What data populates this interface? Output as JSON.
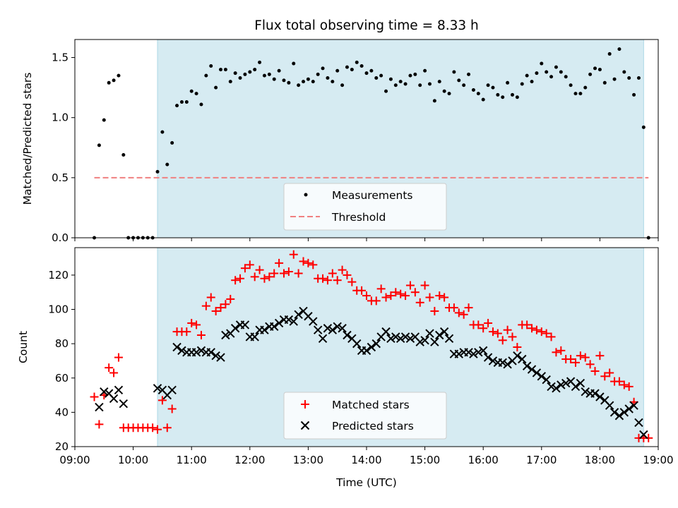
{
  "chart_data": [
    {
      "type": "scatter",
      "title": "Flux total observing time = 8.33 h",
      "xlabel": "",
      "ylabel": "Matched/Predicted stars",
      "xlim": [
        "09:00",
        "19:00"
      ],
      "ylim": [
        0,
        1.65
      ],
      "yticks": [
        0.0,
        0.5,
        1.0,
        1.5
      ],
      "ytick_labels": [
        "0.0",
        "0.5",
        "1.0",
        "1.5"
      ],
      "shaded_span": [
        "10:25",
        "18:45"
      ],
      "threshold": {
        "value": 0.5,
        "x_range": [
          "09:20",
          "18:50"
        ],
        "color": "#f08080"
      },
      "legend": {
        "placement": "lower-center",
        "entries": [
          "Measurements",
          "Threshold"
        ]
      },
      "series": [
        {
          "name": "Measurements",
          "marker": "dot",
          "color": "#000000",
          "x": [
            "09:20",
            "09:25",
            "09:30",
            "09:35",
            "09:40",
            "09:45",
            "09:50",
            "09:55",
            "10:00",
            "10:05",
            "10:10",
            "10:15",
            "10:20",
            "10:25",
            "10:30",
            "10:35",
            "10:40",
            "10:45",
            "10:50",
            "10:55",
            "11:00",
            "11:05",
            "11:10",
            "11:15",
            "11:20",
            "11:25",
            "11:30",
            "11:35",
            "11:40",
            "11:45",
            "11:50",
            "11:55",
            "12:00",
            "12:05",
            "12:10",
            "12:15",
            "12:20",
            "12:25",
            "12:30",
            "12:35",
            "12:40",
            "12:45",
            "12:50",
            "12:55",
            "13:00",
            "13:05",
            "13:10",
            "13:15",
            "13:20",
            "13:25",
            "13:30",
            "13:35",
            "13:40",
            "13:45",
            "13:50",
            "13:55",
            "14:00",
            "14:05",
            "14:10",
            "14:15",
            "14:20",
            "14:25",
            "14:30",
            "14:35",
            "14:40",
            "14:45",
            "14:50",
            "14:55",
            "15:00",
            "15:05",
            "15:10",
            "15:15",
            "15:20",
            "15:25",
            "15:30",
            "15:35",
            "15:40",
            "15:45",
            "15:50",
            "15:55",
            "16:00",
            "16:05",
            "16:10",
            "16:15",
            "16:20",
            "16:25",
            "16:30",
            "16:35",
            "16:40",
            "16:45",
            "16:50",
            "16:55",
            "17:00",
            "17:05",
            "17:10",
            "17:15",
            "17:20",
            "17:25",
            "17:30",
            "17:35",
            "17:40",
            "17:45",
            "17:50",
            "17:55",
            "18:00",
            "18:05",
            "18:10",
            "18:15",
            "18:20",
            "18:25",
            "18:30",
            "18:35",
            "18:40",
            "18:45",
            "18:50"
          ],
          "y": [
            0.0,
            0.77,
            0.98,
            1.29,
            1.31,
            1.35,
            0.69,
            0.0,
            0.0,
            0.0,
            0.0,
            0.0,
            0.0,
            0.55,
            0.88,
            0.61,
            0.79,
            1.1,
            1.13,
            1.13,
            1.22,
            1.2,
            1.11,
            1.35,
            1.43,
            1.25,
            1.4,
            1.4,
            1.3,
            1.37,
            1.33,
            1.36,
            1.38,
            1.4,
            1.46,
            1.35,
            1.36,
            1.32,
            1.39,
            1.31,
            1.29,
            1.45,
            1.27,
            1.3,
            1.32,
            1.3,
            1.36,
            1.41,
            1.33,
            1.3,
            1.39,
            1.27,
            1.42,
            1.4,
            1.46,
            1.43,
            1.37,
            1.39,
            1.33,
            1.35,
            1.22,
            1.32,
            1.27,
            1.3,
            1.28,
            1.35,
            1.36,
            1.27,
            1.39,
            1.28,
            1.14,
            1.3,
            1.22,
            1.2,
            1.38,
            1.31,
            1.27,
            1.36,
            1.23,
            1.2,
            1.15,
            1.27,
            1.25,
            1.19,
            1.17,
            1.29,
            1.19,
            1.17,
            1.28,
            1.35,
            1.3,
            1.37,
            1.45,
            1.38,
            1.34,
            1.42,
            1.38,
            1.34,
            1.27,
            1.2,
            1.2,
            1.25,
            1.36,
            1.41,
            1.4,
            1.29,
            1.53,
            1.32,
            1.57,
            1.38,
            1.33,
            1.19,
            1.33,
            0.92,
            0.0
          ]
        }
      ]
    },
    {
      "type": "scatter",
      "title": "",
      "xlabel": "Time (UTC)",
      "ylabel": "Count",
      "xlim": [
        "09:00",
        "19:00"
      ],
      "ylim": [
        20,
        136
      ],
      "yticks": [
        20,
        40,
        60,
        80,
        100,
        120
      ],
      "ytick_labels": [
        "20",
        "40",
        "60",
        "80",
        "100",
        "120"
      ],
      "xticks": [
        "09:00",
        "10:00",
        "11:00",
        "12:00",
        "13:00",
        "14:00",
        "15:00",
        "16:00",
        "17:00",
        "18:00",
        "19:00"
      ],
      "shaded_span": [
        "10:25",
        "18:45"
      ],
      "legend": {
        "placement": "lower-center",
        "entries": [
          "Matched stars",
          "Predicted stars"
        ]
      },
      "series": [
        {
          "name": "Matched stars",
          "marker": "plus",
          "color": "#ff0000",
          "x": [
            "09:20",
            "09:25",
            "09:30",
            "09:35",
            "09:40",
            "09:45",
            "09:50",
            "09:55",
            "10:00",
            "10:05",
            "10:10",
            "10:15",
            "10:20",
            "10:25",
            "10:30",
            "10:35",
            "10:40",
            "10:45",
            "10:50",
            "10:55",
            "11:00",
            "11:05",
            "11:10",
            "11:15",
            "11:20",
            "11:25",
            "11:30",
            "11:35",
            "11:40",
            "11:45",
            "11:50",
            "11:55",
            "12:00",
            "12:05",
            "12:10",
            "12:15",
            "12:20",
            "12:25",
            "12:30",
            "12:35",
            "12:40",
            "12:45",
            "12:50",
            "12:55",
            "13:00",
            "13:05",
            "13:10",
            "13:15",
            "13:20",
            "13:25",
            "13:30",
            "13:35",
            "13:40",
            "13:45",
            "13:50",
            "13:55",
            "14:00",
            "14:05",
            "14:10",
            "14:15",
            "14:20",
            "14:25",
            "14:30",
            "14:35",
            "14:40",
            "14:45",
            "14:50",
            "14:55",
            "15:00",
            "15:05",
            "15:10",
            "15:15",
            "15:20",
            "15:25",
            "15:30",
            "15:35",
            "15:40",
            "15:45",
            "15:50",
            "15:55",
            "16:00",
            "16:05",
            "16:10",
            "16:15",
            "16:20",
            "16:25",
            "16:30",
            "16:35",
            "16:40",
            "16:45",
            "16:50",
            "16:55",
            "17:00",
            "17:05",
            "17:10",
            "17:15",
            "17:20",
            "17:25",
            "17:30",
            "17:35",
            "17:40",
            "17:45",
            "17:50",
            "17:55",
            "18:00",
            "18:05",
            "18:10",
            "18:15",
            "18:20",
            "18:25",
            "18:30",
            "18:35",
            "18:40",
            "18:45",
            "18:50"
          ],
          "y": [
            49,
            33,
            50,
            66,
            63,
            72,
            31,
            31,
            31,
            31,
            31,
            31,
            31,
            30,
            47,
            31,
            42,
            87,
            87,
            87,
            92,
            91,
            85,
            102,
            107,
            99,
            101,
            103,
            106,
            117,
            118,
            124,
            126,
            119,
            123,
            118,
            119,
            121,
            127,
            121,
            122,
            132,
            121,
            128,
            127,
            126,
            118,
            118,
            117,
            121,
            117,
            123,
            120,
            116,
            111,
            111,
            108,
            105,
            105,
            112,
            107,
            108,
            110,
            109,
            108,
            114,
            110,
            104,
            114,
            107,
            99,
            108,
            107,
            101,
            101,
            98,
            97,
            101,
            91,
            91,
            89,
            92,
            87,
            86,
            82,
            88,
            84,
            78,
            91,
            91,
            89,
            88,
            87,
            86,
            84,
            75,
            76,
            71,
            71,
            69,
            73,
            72,
            68,
            64,
            73,
            61,
            63,
            58,
            58,
            56,
            55,
            46,
            25,
            25,
            25
          ]
        },
        {
          "name": "Predicted stars",
          "marker": "cross",
          "color": "#000000",
          "x": [
            "09:20",
            "09:25",
            "09:30",
            "09:35",
            "09:40",
            "09:45",
            "09:50",
            "09:55",
            "10:00",
            "10:05",
            "10:10",
            "10:15",
            "10:20",
            "10:25",
            "10:30",
            "10:35",
            "10:40",
            "10:45",
            "10:50",
            "10:55",
            "11:00",
            "11:05",
            "11:10",
            "11:15",
            "11:20",
            "11:25",
            "11:30",
            "11:35",
            "11:40",
            "11:45",
            "11:50",
            "11:55",
            "12:00",
            "12:05",
            "12:10",
            "12:15",
            "12:20",
            "12:25",
            "12:30",
            "12:35",
            "12:40",
            "12:45",
            "12:50",
            "12:55",
            "13:00",
            "13:05",
            "13:10",
            "13:15",
            "13:20",
            "13:25",
            "13:30",
            "13:35",
            "13:40",
            "13:45",
            "13:50",
            "13:55",
            "14:00",
            "14:05",
            "14:10",
            "14:15",
            "14:20",
            "14:25",
            "14:30",
            "14:35",
            "14:40",
            "14:45",
            "14:50",
            "14:55",
            "15:00",
            "15:05",
            "15:10",
            "15:15",
            "15:20",
            "15:25",
            "15:30",
            "15:35",
            "15:40",
            "15:45",
            "15:50",
            "15:55",
            "16:00",
            "16:05",
            "16:10",
            "16:15",
            "16:20",
            "16:25",
            "16:30",
            "16:35",
            "16:40",
            "16:45",
            "16:50",
            "16:55",
            "17:00",
            "17:05",
            "17:10",
            "17:15",
            "17:20",
            "17:25",
            "17:30",
            "17:35",
            "17:40",
            "17:45",
            "17:50",
            "17:55",
            "18:00",
            "18:05",
            "18:10",
            "18:15",
            "18:20",
            "18:25",
            "18:30",
            "18:35",
            "18:40",
            "18:45",
            "18:50"
          ],
          "y": [
            null,
            43,
            52,
            51,
            48,
            53,
            45,
            null,
            null,
            null,
            null,
            null,
            null,
            54,
            53,
            50,
            53,
            78,
            76,
            75,
            75,
            75,
            76,
            75,
            75,
            73,
            72,
            85,
            86,
            89,
            91,
            91,
            84,
            84,
            88,
            88,
            90,
            90,
            92,
            94,
            94,
            93,
            97,
            99,
            96,
            93,
            88,
            83,
            89,
            88,
            90,
            89,
            85,
            83,
            80,
            76,
            76,
            78,
            80,
            84,
            87,
            83,
            84,
            83,
            84,
            83,
            84,
            81,
            82,
            86,
            81,
            85,
            87,
            83,
            74,
            74,
            75,
            75,
            74,
            75,
            76,
            72,
            70,
            69,
            69,
            68,
            70,
            73,
            71,
            67,
            65,
            63,
            61,
            59,
            55,
            54,
            56,
            57,
            58,
            55,
            57,
            52,
            51,
            51,
            49,
            47,
            44,
            40,
            38,
            40,
            42,
            44,
            34,
            27,
            null
          ]
        }
      ]
    }
  ]
}
